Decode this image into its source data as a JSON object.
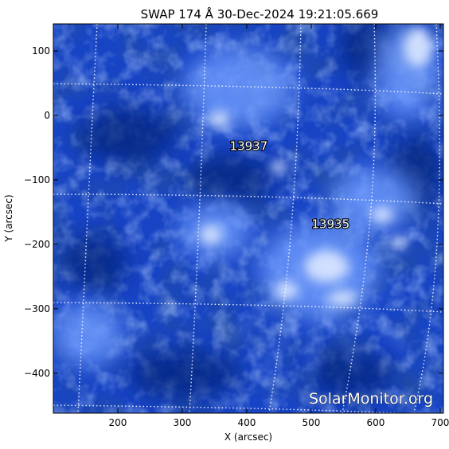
{
  "title": "SWAP 174 Å 30-Dec-2024 19:21:05.669",
  "watermark": "SolarMonitor.org",
  "colors": {
    "background": "#ffffff",
    "image_dark": "#041a5a",
    "image_mid": "#1a55e0",
    "image_bright": "#dce8ff",
    "grid": "#ffffff",
    "axis_text": "#000000"
  },
  "chart_data": {
    "type": "heatmap",
    "xlabel": "X (arcsec)",
    "ylabel": "Y (arcsec)",
    "xlim": [
      100,
      705
    ],
    "ylim": [
      -462,
      142
    ],
    "x_ticks": [
      200,
      300,
      400,
      500,
      600,
      700
    ],
    "y_ticks": [
      100,
      0,
      -100,
      -200,
      -300,
      -400
    ],
    "x_tick_labels": [
      "200",
      "300",
      "400",
      "500",
      "600",
      "700"
    ],
    "y_tick_labels": [
      "100",
      "0",
      "−100",
      "−200",
      "−300",
      "−400"
    ],
    "regions": [
      {
        "label": "13937",
        "x": 403,
        "y": -54
      },
      {
        "label": "13935",
        "x": 530,
        "y": -175
      }
    ]
  }
}
